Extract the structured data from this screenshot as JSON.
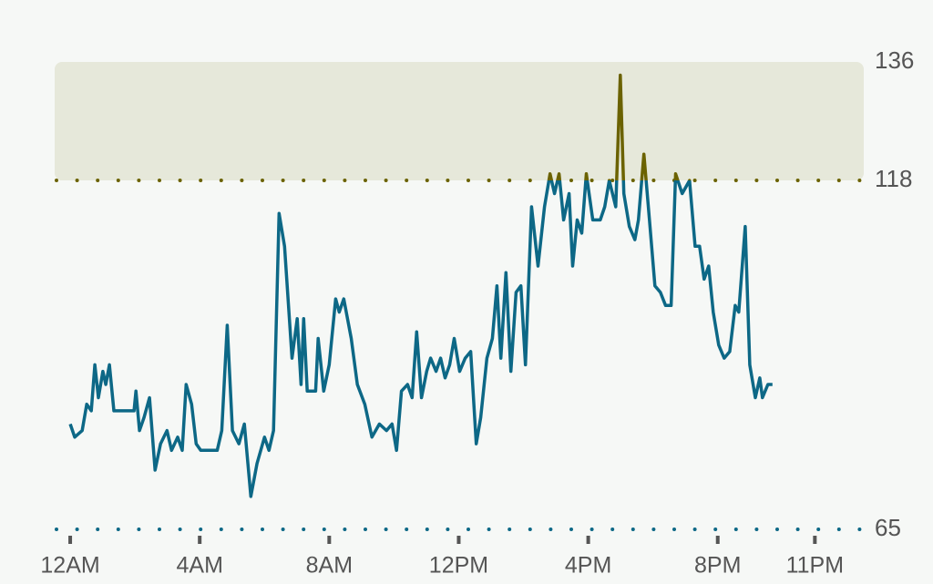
{
  "chart_data": {
    "type": "line",
    "color": "#0d6886",
    "x": [
      0,
      0.14,
      0.37,
      0.51,
      0.65,
      0.76,
      0.87,
      1.01,
      1.1,
      1.21,
      1.35,
      1.97,
      2.03,
      2.14,
      2.28,
      2.45,
      2.62,
      2.79,
      2.99,
      3.13,
      3.32,
      3.46,
      3.58,
      3.75,
      3.89,
      4.03,
      4.31,
      4.54,
      4.68,
      4.85,
      5.01,
      5.21,
      5.38,
      5.58,
      5.77,
      6,
      6.14,
      6.28,
      6.45,
      6.62,
      6.85,
      7.01,
      7.13,
      7.21,
      7.32,
      7.58,
      7.66,
      7.83,
      8,
      8.2,
      8.31,
      8.45,
      8.68,
      8.87,
      9.1,
      9.32,
      9.55,
      9.77,
      9.94,
      10.08,
      10.23,
      10.42,
      10.56,
      10.7,
      10.85,
      11.01,
      11.13,
      11.3,
      11.44,
      11.58,
      11.72,
      11.86,
      12.03,
      12.2,
      12.37,
      12.54,
      12.68,
      12.87,
      13.04,
      13.18,
      13.3,
      13.46,
      13.61,
      13.77,
      13.92,
      14.06,
      14.25,
      14.45,
      14.65,
      14.82,
      14.96,
      15.1,
      15.24,
      15.41,
      15.52,
      15.66,
      15.8,
      15.94,
      16.14,
      16.37,
      16.51,
      16.65,
      16.85,
      16.99,
      17.1,
      17.27,
      17.44,
      17.55,
      17.72,
      17.89,
      18.06,
      18.23,
      18.39,
      18.56,
      18.7,
      18.9,
      19.13,
      19.3,
      19.44,
      19.58,
      19.72,
      19.86,
      20.03,
      20.2,
      20.37,
      20.54,
      20.65,
      20.85,
      20.99,
      21.16,
      21.3,
      21.38,
      21.55,
      21.69
    ],
    "values": [
      81,
      79,
      80,
      84,
      83,
      90,
      85,
      89,
      87,
      90,
      83,
      83,
      86,
      80,
      82,
      85,
      74,
      78,
      80,
      77,
      79,
      77,
      87,
      84,
      78,
      77,
      77,
      77,
      80,
      96,
      80,
      78,
      81,
      70,
      75,
      79,
      77,
      80,
      113,
      108,
      91,
      97,
      87,
      97,
      86,
      86,
      94,
      86,
      90,
      100,
      98,
      100,
      94,
      87,
      84,
      79,
      81,
      80,
      81,
      77,
      86,
      87,
      85,
      95,
      85,
      89,
      91,
      89,
      91,
      88,
      90,
      94,
      89,
      91,
      92,
      78,
      82,
      91,
      94,
      102,
      91,
      104,
      89,
      101,
      102,
      90,
      114,
      105,
      114,
      119,
      116,
      119,
      112,
      116,
      105,
      112,
      110,
      119,
      112,
      112,
      114,
      118,
      114,
      134,
      116,
      111,
      109,
      112,
      122,
      112,
      102,
      101,
      99,
      99,
      119,
      116,
      118,
      108,
      108,
      103,
      105,
      98,
      93,
      91,
      92,
      99,
      98,
      111,
      90,
      85,
      88,
      85,
      87,
      87
    ],
    "zone": [
      118,
      136
    ],
    "zone_fill": "#e6e8da",
    "zone_color": "#6b6200",
    "xlim": [
      -0.48,
      24.51
    ],
    "xticks": [
      {
        "value": 0,
        "label": "12AM"
      },
      {
        "value": 4,
        "label": "4AM"
      },
      {
        "value": 8,
        "label": "8AM"
      },
      {
        "value": 12,
        "label": "12PM"
      },
      {
        "value": 16,
        "label": "4PM"
      },
      {
        "value": 20,
        "label": "8PM"
      },
      {
        "value": 23,
        "label": "11PM"
      }
    ],
    "ylim": [
      65,
      136
    ],
    "yticks": [
      65,
      118,
      136
    ]
  }
}
